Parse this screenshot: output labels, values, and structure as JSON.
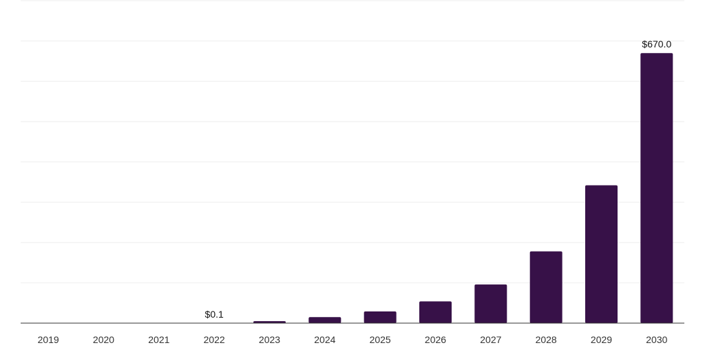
{
  "colors": {
    "bar": "#371148"
  },
  "chart_data": {
    "type": "bar",
    "categories": [
      "2019",
      "2020",
      "2021",
      "2022",
      "2023",
      "2024",
      "2025",
      "2026",
      "2027",
      "2028",
      "2029",
      "2030"
    ],
    "series": [
      {
        "values": [
          0,
          0,
          0,
          0.1,
          5,
          15,
          29,
          54,
          96,
          178,
          342,
          670.0
        ]
      }
    ],
    "data_labels": [
      {
        "category": "2022",
        "text": "$0.1"
      },
      {
        "category": "2030",
        "text": "$670.0"
      }
    ],
    "ylim": [
      0,
      800
    ],
    "y_tick_step": 100,
    "y_tick_labels_visible": false,
    "grid": true,
    "legend": "none"
  }
}
